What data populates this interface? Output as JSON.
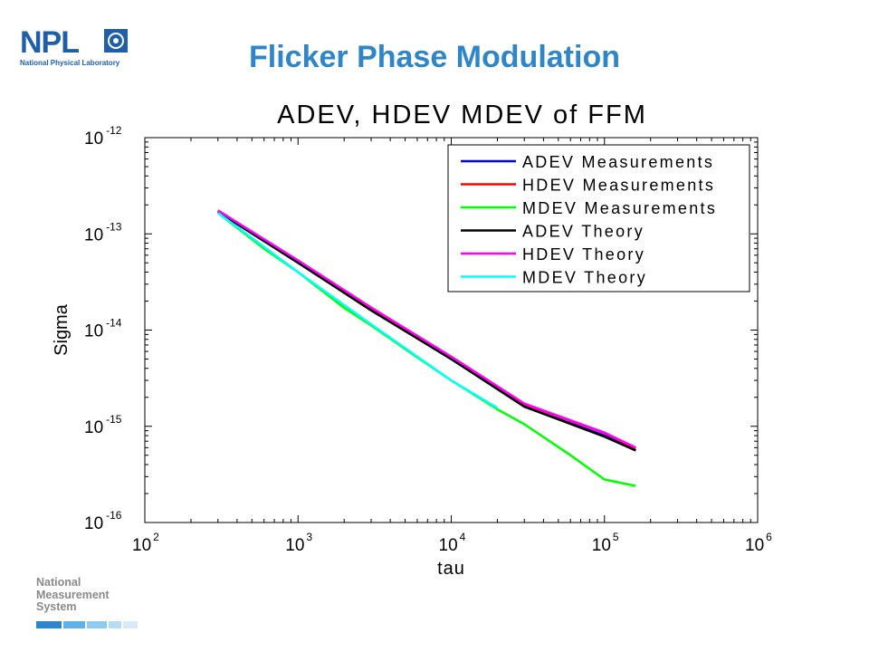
{
  "logo": {
    "text": "NPL",
    "subtitle": "National Physical Laboratory",
    "icon": "npl-crest-icon"
  },
  "slide_title": "Flicker Phase Modulation",
  "footer_logo": {
    "lines": [
      "National",
      "Measurement",
      "System"
    ]
  },
  "colors": {
    "title": "#2e86c9",
    "npl_blue": "#1f5fa8",
    "adev_meas": "#0000ff",
    "hdev_meas": "#ff0000",
    "mdev_meas": "#00ff00",
    "adev_theory": "#000000",
    "hdev_theory": "#ff00ff",
    "mdev_theory": "#00ffff"
  },
  "chart_data": {
    "type": "line",
    "title": "ADEV, HDEV MDEV of FFM",
    "xlabel": "tau",
    "ylabel": "Sigma",
    "xscale": "log",
    "yscale": "log",
    "xlim": [
      100,
      1000000
    ],
    "ylim": [
      1e-16,
      1e-12
    ],
    "x_ticks": [
      {
        "base": "10",
        "exp": "2",
        "value": 100
      },
      {
        "base": "10",
        "exp": "3",
        "value": 1000
      },
      {
        "base": "10",
        "exp": "4",
        "value": 10000
      },
      {
        "base": "10",
        "exp": "5",
        "value": 100000
      },
      {
        "base": "10",
        "exp": "6",
        "value": 1000000
      }
    ],
    "y_ticks": [
      {
        "base": "10",
        "exp": "-12",
        "value": 1e-12
      },
      {
        "base": "10",
        "exp": "-13",
        "value": 1e-13
      },
      {
        "base": "10",
        "exp": "-14",
        "value": 1e-14
      },
      {
        "base": "10",
        "exp": "-15",
        "value": 1e-15
      },
      {
        "base": "10",
        "exp": "-16",
        "value": 1e-16
      }
    ],
    "grid": false,
    "legend_position": "top-right",
    "series": [
      {
        "name": "ADEV Measurements",
        "color": "#0000ff",
        "x": [
          300,
          1000,
          3000,
          10000,
          30000,
          100000,
          160000
        ],
        "y": [
          1.7e-13,
          5e-14,
          1.62e-14,
          5e-15,
          1.6e-15,
          8e-16,
          5.6e-16
        ]
      },
      {
        "name": "HDEV Measurements",
        "color": "#ff0000",
        "x": [
          300,
          1000,
          3000,
          10000,
          30000,
          100000,
          160000
        ],
        "y": [
          1.75e-13,
          5.2e-14,
          1.7e-14,
          5.2e-15,
          1.7e-15,
          8.5e-16,
          5.9e-16
        ]
      },
      {
        "name": "MDEV Measurements",
        "color": "#00ff00",
        "x": [
          300,
          600,
          1000,
          2000,
          3000,
          6000,
          10000,
          20000,
          30000,
          60000,
          100000,
          160000
        ],
        "y": [
          1.65e-13,
          7e-14,
          4e-14,
          1.7e-14,
          1.12e-14,
          5.2e-15,
          3e-15,
          1.5e-15,
          1.05e-15,
          5e-16,
          2.8e-16,
          2.4e-16
        ]
      },
      {
        "name": "ADEV Theory",
        "color": "#000000",
        "x": [
          300,
          1000,
          3000,
          10000,
          30000,
          100000,
          160000
        ],
        "y": [
          1.7e-13,
          5e-14,
          1.6e-14,
          5e-15,
          1.6e-15,
          7.8e-16,
          5.6e-16
        ]
      },
      {
        "name": "HDEV Theory",
        "color": "#ff00ff",
        "x": [
          300,
          1000,
          3000,
          10000,
          30000,
          100000,
          160000
        ],
        "y": [
          1.75e-13,
          5.3e-14,
          1.72e-14,
          5.3e-15,
          1.72e-15,
          8.6e-16,
          6e-16
        ]
      },
      {
        "name": "MDEV Theory",
        "color": "#00ffff",
        "x": [
          300,
          1000,
          3000,
          10000,
          20000
        ],
        "y": [
          1.65e-13,
          4e-14,
          1.15e-14,
          3e-15,
          1.55e-15
        ]
      }
    ]
  }
}
